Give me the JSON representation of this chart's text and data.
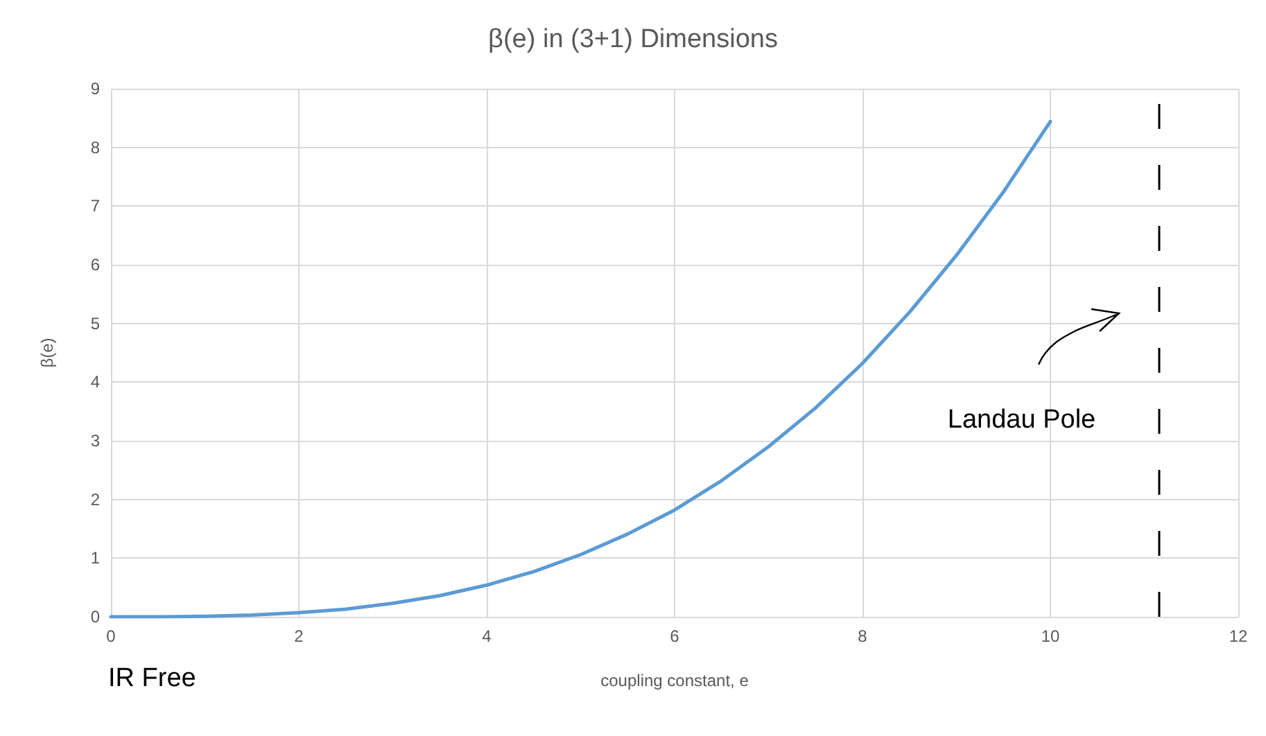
{
  "chart_data": {
    "type": "line",
    "title": "β(e) in (3+1) Dimensions",
    "xlabel": "coupling constant, e",
    "ylabel": "β(e)",
    "x": [
      0,
      0.5,
      1,
      1.5,
      2,
      2.5,
      3,
      3.5,
      4,
      4.5,
      5,
      5.5,
      6,
      6.5,
      7,
      7.5,
      8,
      8.5,
      9,
      9.5,
      10
    ],
    "series": [
      {
        "color": "#5b9bd5",
        "values": [
          0,
          0,
          0.01,
          0.03,
          0.07,
          0.13,
          0.23,
          0.36,
          0.54,
          0.77,
          1.06,
          1.41,
          1.82,
          2.32,
          2.9,
          3.56,
          4.32,
          5.19,
          6.16,
          7.24,
          8.44
        ]
      }
    ],
    "xlim": [
      0,
      12
    ],
    "xticks": [
      0,
      2,
      4,
      6,
      8,
      10,
      12
    ],
    "ylim": [
      0,
      9
    ],
    "yticks": [
      0,
      1,
      2,
      3,
      4,
      5,
      6,
      7,
      8,
      9
    ],
    "grid": true,
    "marker": "none",
    "line_style": "solid",
    "ref_lines": [
      {
        "axis": "x",
        "value": 11.15,
        "color": "#000000",
        "line_style": "dashed"
      }
    ],
    "annotations": [
      {
        "text": "Landau Pole",
        "x": 11.15,
        "y": 3.3
      },
      "IR Free"
    ]
  }
}
